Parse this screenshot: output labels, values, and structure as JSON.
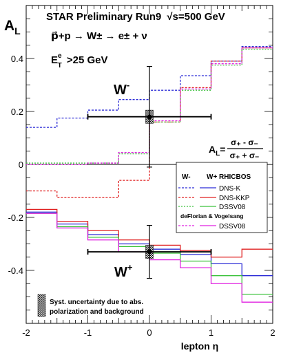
{
  "header": {
    "line1_main": "STAR  Preliminary  Run9",
    "line1_sqrt": "√s=500 GeV",
    "line2": "p⃗+p → W± → e± + ν",
    "line3_main": "E",
    "line3_sup": "e",
    "line3_sub": "T",
    "line3_rest": " >25 GeV"
  },
  "formula": {
    "lhs": "A",
    "lhs_sub": "L",
    "num": "σ₊ - σ₋",
    "den": "σ₊ + σ₋"
  },
  "labels": {
    "w_minus": "W",
    "w_minus_sup": "-",
    "w_plus": "W",
    "w_plus_sup": "+"
  },
  "legend": {
    "col_wminus": "W-",
    "col_wplus": "W+  RHICBOS",
    "entries": [
      "DNS-K",
      "DNS-KKP",
      "DSSV08"
    ],
    "group2_title": "deFlorian & Vogelsang",
    "group2_entries": [
      "DSSV08"
    ]
  },
  "syst_note": {
    "line1": "Syst. uncertainty due to abs.",
    "line2": "polarization and background"
  },
  "chart_data": {
    "type": "line",
    "ylabel": "A",
    "ylabel_sub": "L",
    "xlabel": "lepton η",
    "xlim": [
      -2,
      2
    ],
    "ylim": [
      -0.6,
      0.6
    ],
    "x_ticks": [
      "-2",
      "-1",
      "0",
      "1",
      "2"
    ],
    "y_ticks": [
      "-0.4",
      "-0.2",
      "0",
      "0.2",
      "0.4"
    ],
    "bin_edges": [
      -2,
      -1.5,
      -1,
      -0.5,
      0,
      0.5,
      1,
      1.5,
      2
    ],
    "colors": {
      "dns_k": "#2b2bd6",
      "dns_kkp": "#e02020",
      "dssv08": "#3cc23c",
      "dssv08_dfv": "#e020e0"
    },
    "series": [
      {
        "name": "W- DNS-K",
        "style": "dashed",
        "color_key": "dns_k",
        "values": [
          0.14,
          0.175,
          0.205,
          0.245,
          0.28,
          0.335,
          0.39,
          0.445
        ]
      },
      {
        "name": "W- DNS-KKP",
        "style": "dashed",
        "color_key": "dns_kkp",
        "values": [
          -0.1,
          -0.125,
          -0.125,
          -0.06,
          0.16,
          0.29,
          0.39,
          0.44
        ]
      },
      {
        "name": "W- DSSV08",
        "style": "dashed",
        "color_key": "dssv08",
        "values": [
          0.005,
          0.005,
          0.005,
          0.04,
          0.16,
          0.28,
          0.375,
          0.435
        ]
      },
      {
        "name": "W- DSSV08 (deFlorian & Vogelsang)",
        "style": "dashed",
        "color_key": "dssv08_dfv",
        "values": [
          0.0,
          0.0,
          0.005,
          0.045,
          0.165,
          0.285,
          0.38,
          0.44
        ]
      },
      {
        "name": "W+ DNS-K",
        "style": "solid",
        "color_key": "dns_k",
        "values": [
          -0.18,
          -0.225,
          -0.265,
          -0.3,
          -0.32,
          -0.34,
          -0.375,
          -0.42
        ]
      },
      {
        "name": "W+ DNS-KKP",
        "style": "solid",
        "color_key": "dns_kkp",
        "values": [
          -0.17,
          -0.215,
          -0.25,
          -0.285,
          -0.305,
          -0.325,
          -0.35,
          -0.32
        ]
      },
      {
        "name": "W+ DSSV08",
        "style": "solid",
        "color_key": "dssv08",
        "values": [
          -0.185,
          -0.235,
          -0.275,
          -0.31,
          -0.335,
          -0.365,
          -0.42,
          -0.49
        ]
      },
      {
        "name": "W+ DSSV08 (deFlorian & Vogelsang)",
        "style": "solid",
        "color_key": "dssv08_dfv",
        "values": [
          -0.185,
          -0.24,
          -0.285,
          -0.33,
          -0.36,
          -0.39,
          -0.45,
          -0.52
        ]
      }
    ],
    "points": [
      {
        "name": "W-",
        "x": 0,
        "y": 0.18,
        "x_err": 1.0,
        "y_err": 0.19,
        "syst": 0.025
      },
      {
        "name": "W+",
        "x": 0,
        "y": -0.33,
        "x_err": 1.0,
        "y_err": 0.1,
        "syst": 0.025
      }
    ]
  }
}
